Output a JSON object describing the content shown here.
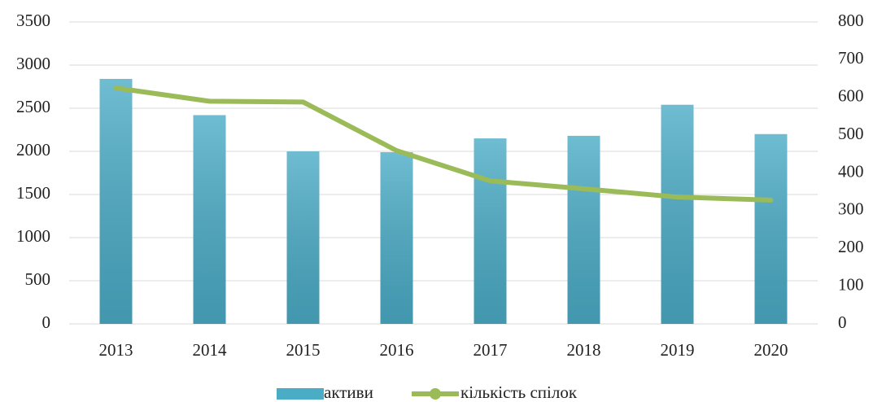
{
  "chart_data": {
    "type": "bar",
    "categories": [
      "2013",
      "2014",
      "2015",
      "2016",
      "2017",
      "2018",
      "2019",
      "2020"
    ],
    "series": [
      {
        "name": "активи",
        "type": "bar",
        "color": "#4bacc6",
        "values": [
          2840,
          2420,
          2000,
          1990,
          2150,
          2180,
          2540,
          2200
        ]
      },
      {
        "name": "кількість спілок",
        "type": "line",
        "axis": "y2",
        "color": "#9bbb59",
        "values": [
          625,
          590,
          588,
          459,
          379,
          358,
          336,
          328
        ]
      }
    ],
    "ylim": [
      0,
      3500
    ],
    "yticks": [
      0,
      500,
      1000,
      1500,
      2000,
      2500,
      3000,
      3500
    ],
    "y2lim": [
      0,
      800
    ],
    "y2ticks": [
      0,
      100,
      200,
      300,
      400,
      500,
      600,
      700,
      800
    ],
    "grid": true,
    "legend": "bottom"
  }
}
